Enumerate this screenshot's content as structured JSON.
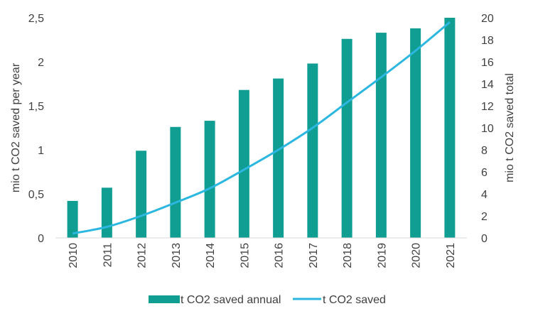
{
  "colors": {
    "bar": "#109e93",
    "line": "#2bb7e0",
    "axis": "#d9d9d9",
    "text": "#404040"
  },
  "chart_data": {
    "type": "bar",
    "categories": [
      "2010",
      "2011",
      "2012",
      "2013",
      "2014",
      "2015",
      "2016",
      "2017",
      "2018",
      "2019",
      "2020",
      "2021"
    ],
    "series": [
      {
        "name": "t CO2 saved annual",
        "type": "bar",
        "axis": "left",
        "values": [
          0.42,
          0.57,
          0.99,
          1.26,
          1.33,
          1.68,
          1.81,
          1.98,
          2.26,
          2.33,
          2.38,
          2.5
        ]
      },
      {
        "name": "t CO2 saved",
        "type": "line",
        "axis": "right",
        "values": [
          0.4,
          1.0,
          2.0,
          3.2,
          4.5,
          6.2,
          8.0,
          10.0,
          12.3,
          14.6,
          17.0,
          19.6
        ]
      }
    ],
    "ylabel": "mio t CO2 saved per year",
    "ylabel_right": "mio t CO2 saved total",
    "ylim": [
      0,
      2.5
    ],
    "ylim_right": [
      0,
      20
    ],
    "yticks": [
      "0",
      "0,5",
      "1",
      "1,5",
      "2",
      "2,5"
    ],
    "yticks_right": [
      "0",
      "2",
      "4",
      "6",
      "8",
      "10",
      "12",
      "14",
      "16",
      "18",
      "20"
    ],
    "grid": false,
    "legend_position": "bottom"
  }
}
